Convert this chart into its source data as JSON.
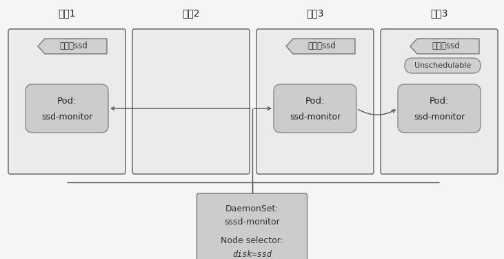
{
  "fig_w": 7.31,
  "fig_h": 3.75,
  "bg_color": "#f5f5f5",
  "node_bg": "#ebebeb",
  "node_border": "#777777",
  "pod_bg": "#cccccc",
  "pod_border": "#888888",
  "label_bg": "#d0d0d0",
  "label_border": "#777777",
  "daemonset_bg": "#cccccc",
  "daemonset_border": "#777777",
  "unschedulable_bg": "#d0d0d0",
  "unschedulable_border": "#888888",
  "arrow_color": "#555555",
  "nodes": [
    {
      "label": "节点1",
      "has_ssd": true,
      "has_pod": true,
      "has_unschedulable": false,
      "label_idx": 1
    },
    {
      "label": "节点2",
      "has_ssd": false,
      "has_pod": false,
      "has_unschedulable": false,
      "label_idx": 2
    },
    {
      "label": "节点3",
      "has_ssd": true,
      "has_pod": true,
      "has_unschedulable": false,
      "label_idx": 3
    },
    {
      "label": "节点3",
      "has_ssd": true,
      "has_pod": true,
      "has_unschedulable": true,
      "label_idx": 4
    }
  ],
  "ssd_label": "磁盘：ssd",
  "pod_line1": "Pod:",
  "pod_line2": "ssd-monitor",
  "unschedulable_label": "Unschedulable",
  "ds_line1": "DaemonSet:",
  "ds_line2": "sssd-monitor",
  "ds_line3": "Node selector:",
  "ds_line4": "disk=ssd"
}
